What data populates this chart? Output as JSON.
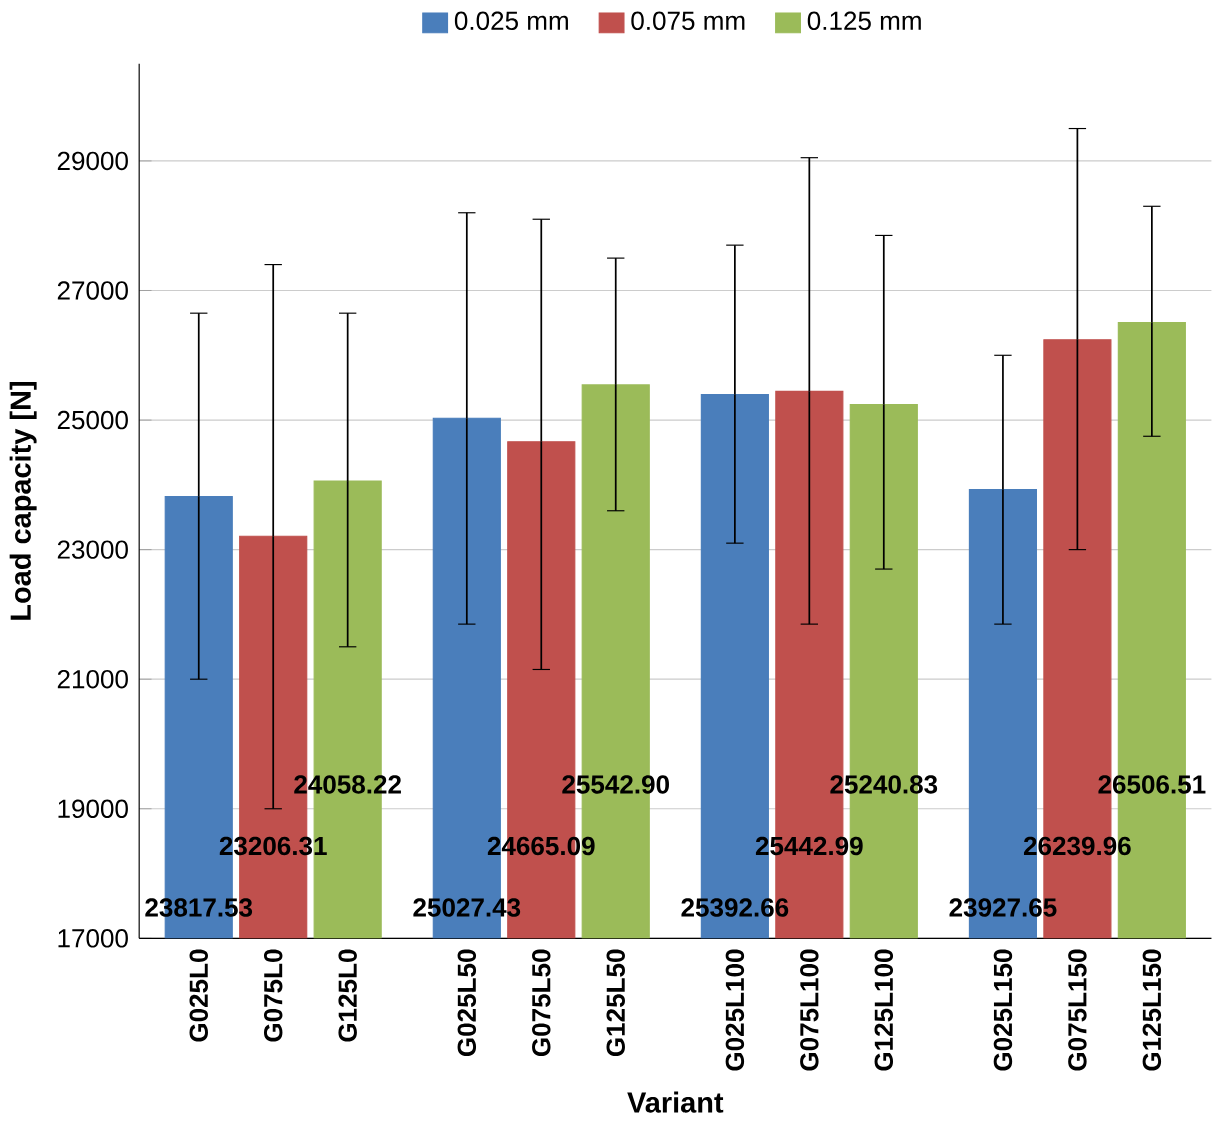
{
  "chart_data": {
    "type": "bar",
    "xlabel": "Variant",
    "ylabel": "Load capacity [N]",
    "categories": [
      "G025L0",
      "G075L0",
      "G125L0",
      "G025L50",
      "G075L50",
      "G125L50",
      "G025L100",
      "G075L100",
      "G125L100",
      "G025L150",
      "G075L150",
      "G125L150"
    ],
    "series": [
      {
        "name": "0.025 mm",
        "color": "#4a7ebb",
        "values": [
          23817.53,
          null,
          null,
          25027.43,
          null,
          null,
          25392.66,
          null,
          null,
          23927.65,
          null,
          null
        ],
        "errors": [
          [
            21000,
            26650
          ],
          null,
          null,
          [
            21850,
            28200
          ],
          null,
          null,
          [
            23100,
            27700
          ],
          null,
          null,
          [
            21850,
            26000
          ],
          null,
          null
        ],
        "value_labels": [
          "23817.53",
          null,
          null,
          "25027.43",
          null,
          null,
          "25392.66",
          null,
          null,
          "23927.65",
          null,
          null
        ]
      },
      {
        "name": "0.075 mm",
        "color": "#c0504d",
        "values": [
          null,
          23206.31,
          null,
          null,
          24665.09,
          null,
          null,
          25442.99,
          null,
          null,
          26239.96,
          null
        ],
        "errors": [
          null,
          [
            19000,
            27400
          ],
          null,
          null,
          [
            21150,
            28100
          ],
          null,
          null,
          [
            21850,
            29050
          ],
          null,
          null,
          [
            23000,
            29500
          ],
          null
        ],
        "value_labels": [
          null,
          "23206.31",
          null,
          null,
          "24665.09",
          null,
          null,
          "25442.99",
          null,
          null,
          "26239.96",
          null
        ]
      },
      {
        "name": "0.125 mm",
        "color": "#9bbb59",
        "values": [
          null,
          null,
          24058.22,
          null,
          null,
          25542.9,
          null,
          null,
          25240.83,
          null,
          null,
          26506.51
        ],
        "errors": [
          null,
          null,
          [
            21500,
            26650
          ],
          null,
          null,
          [
            23600,
            27500
          ],
          null,
          null,
          [
            22700,
            27850
          ],
          null,
          null,
          [
            24750,
            28300
          ]
        ],
        "value_labels": [
          null,
          null,
          "24058.22",
          null,
          null,
          "25542.90",
          null,
          null,
          "25240.83",
          null,
          null,
          "26506.51"
        ]
      }
    ],
    "ylim": [
      17000,
      30500
    ],
    "yticks": [
      17000,
      19000,
      21000,
      23000,
      25000,
      27000,
      29000
    ],
    "grid": "y",
    "legend": "top"
  }
}
